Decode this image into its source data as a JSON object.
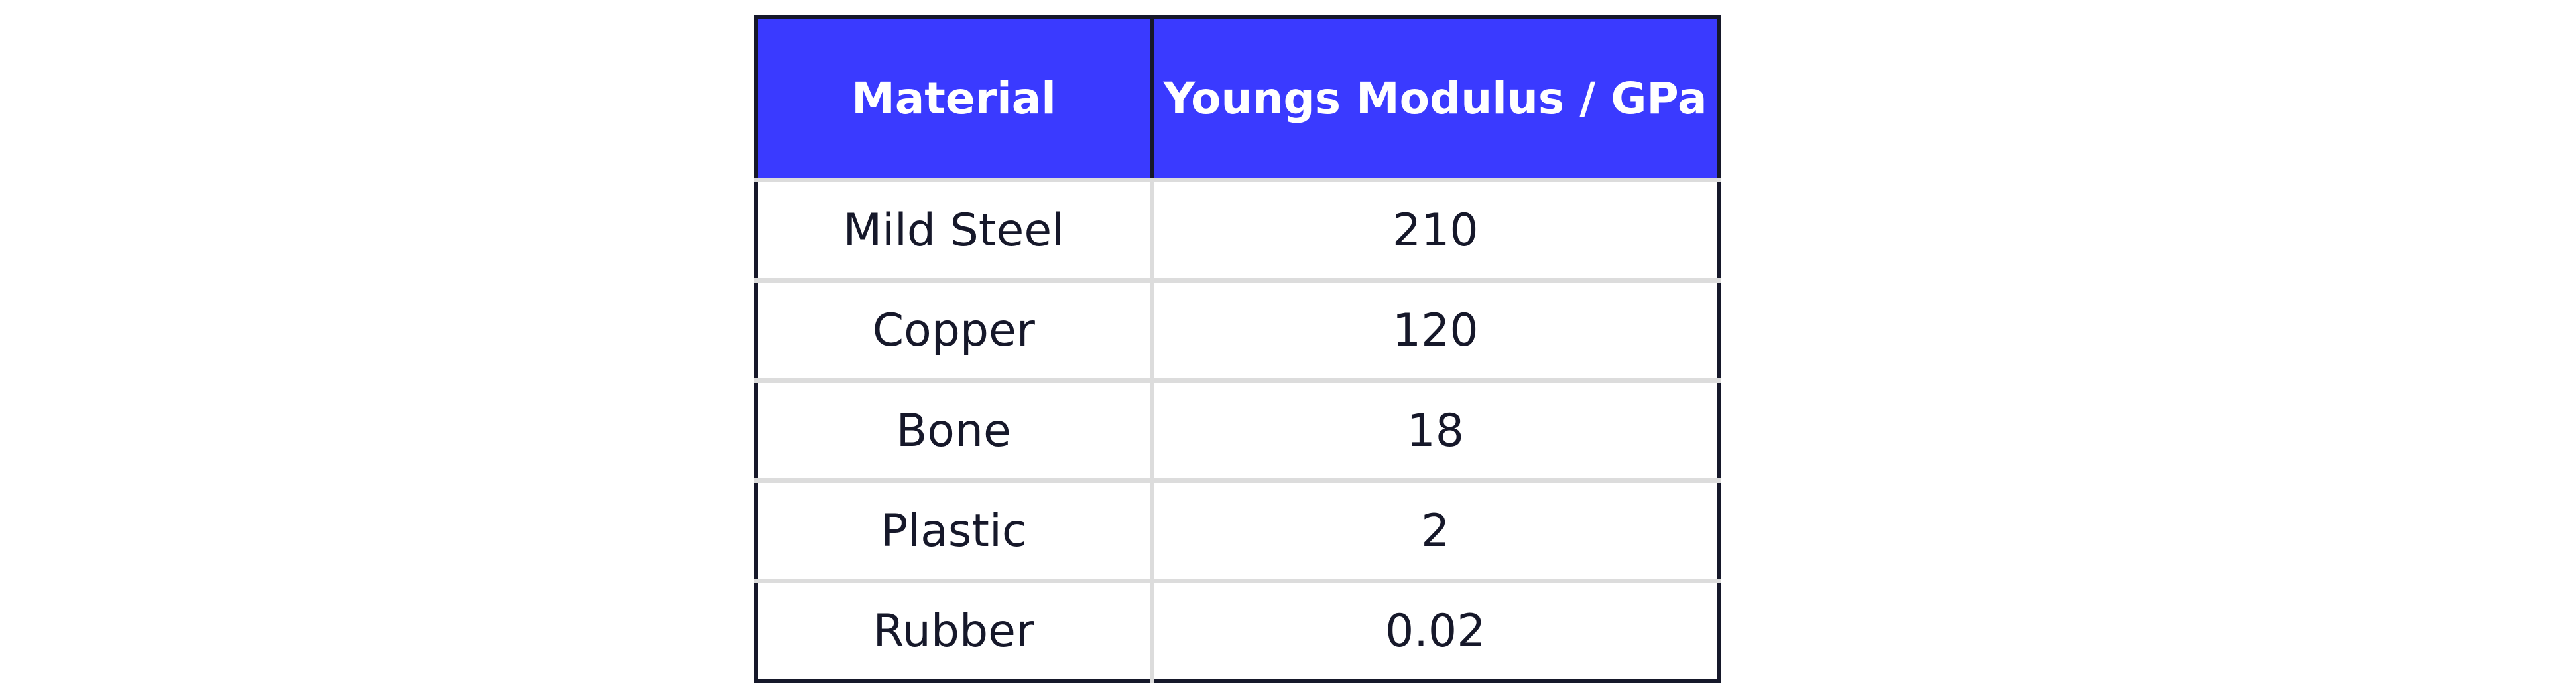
{
  "table": {
    "header": [
      "Material",
      "Youngs Modulus / GPa"
    ],
    "rows": [
      [
        "Mild Steel",
        210
      ],
      [
        "Copper",
        120
      ],
      [
        "Bone",
        18
      ],
      [
        "Plastic",
        2
      ],
      [
        "Rubber",
        0.02
      ]
    ]
  }
}
